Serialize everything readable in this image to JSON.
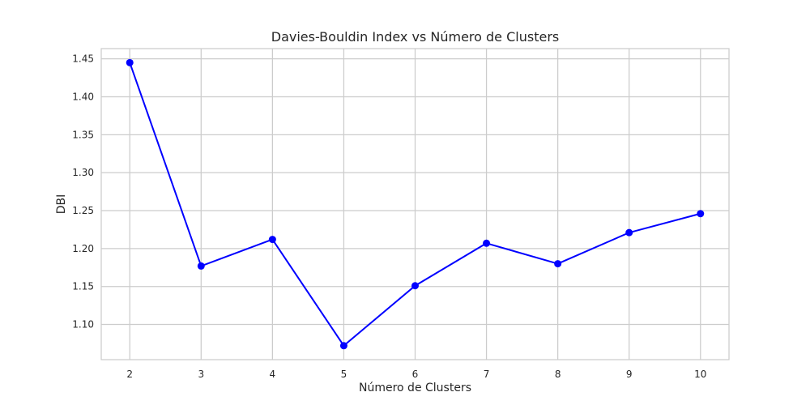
{
  "chart_data": {
    "type": "line",
    "title": "Davies-Bouldin Index vs Número de Clusters",
    "xlabel": "Número de Clusters",
    "ylabel": "DBI",
    "x": [
      2,
      3,
      4,
      5,
      6,
      7,
      8,
      9,
      10
    ],
    "series": [
      {
        "values": [
          1.445,
          1.177,
          1.212,
          1.072,
          1.151,
          1.207,
          1.18,
          1.221,
          1.246
        ]
      }
    ],
    "xlim": [
      1.6,
      10.4
    ],
    "ylim": [
      1.0536,
      1.4635
    ],
    "xticks": [
      "2",
      "3",
      "4",
      "5",
      "6",
      "7",
      "8",
      "9",
      "10"
    ],
    "yticks": [
      "1.10",
      "1.15",
      "1.20",
      "1.25",
      "1.30",
      "1.35",
      "1.40",
      "1.45"
    ],
    "grid": true,
    "legend": "none",
    "colors": {
      "line": "#0000ff",
      "grid": "#cccccc",
      "frame": "#cccccc"
    },
    "marker": "circle"
  }
}
